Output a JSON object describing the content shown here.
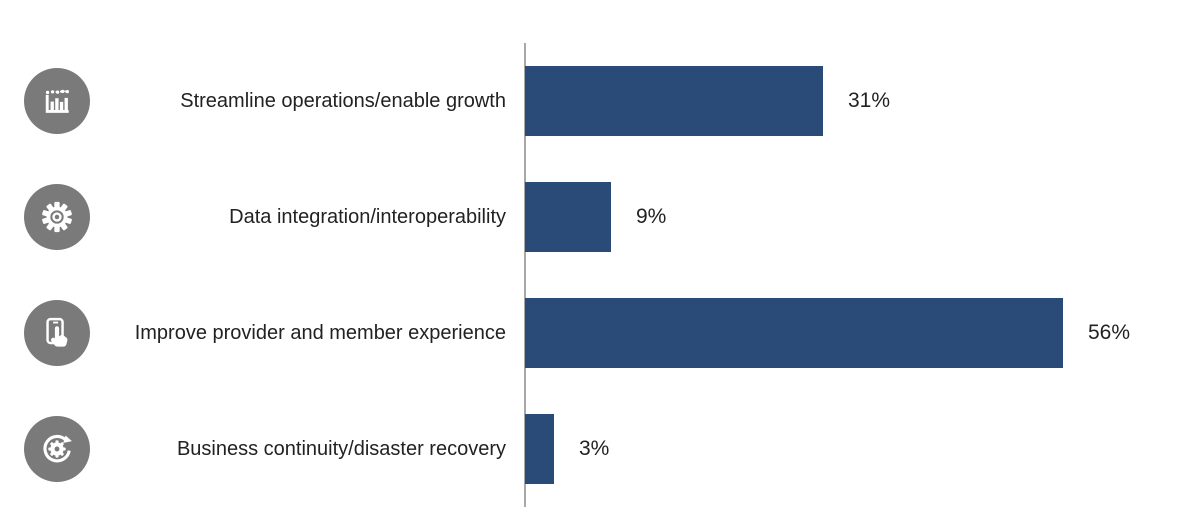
{
  "chart_data": {
    "type": "bar",
    "orientation": "horizontal",
    "categories": [
      "Streamline operations/enable growth",
      "Data integration/interoperability",
      "Improve provider and member experience",
      "Business continuity/disaster recovery"
    ],
    "values": [
      31,
      9,
      56,
      3
    ],
    "value_labels": [
      "31%",
      "9%",
      "56%",
      "3%"
    ],
    "icons": [
      "bar-chart-trend-icon",
      "gear-icon",
      "touch-screen-hand-icon",
      "recovery-gear-arrow-icon"
    ],
    "title": "",
    "xlabel": "",
    "ylabel": "",
    "grid": false,
    "legend": false,
    "bar_color": "#2A4A77",
    "icon_circle_color": "#7A7A7A",
    "axis_line_color": "#A8A8A8",
    "text_color": "#222222"
  }
}
